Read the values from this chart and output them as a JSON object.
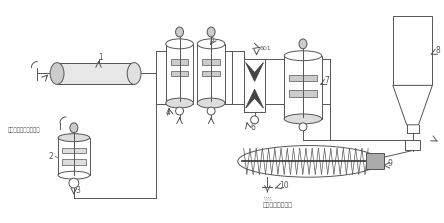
{
  "bg_color": "#ffffff",
  "line_color": "#555555",
  "label_color": "#333333",
  "bottom_label": "尾矿固化充填矿浆",
  "bottom_label2": "混凝碱液、副产石膑渣"
}
